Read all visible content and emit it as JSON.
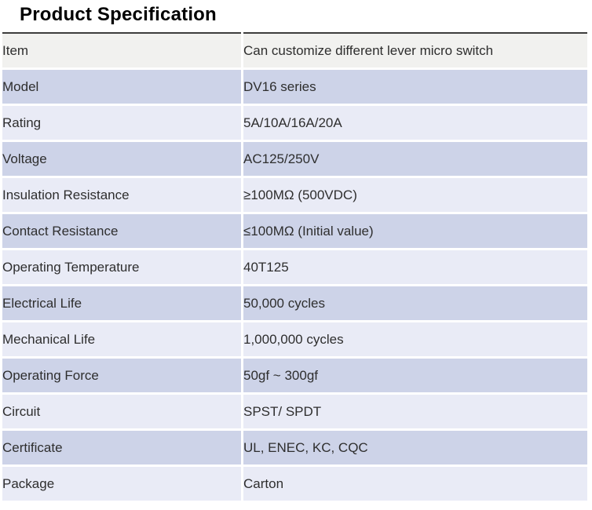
{
  "page": {
    "title": "Product Specification"
  },
  "table": {
    "rows": [
      {
        "label": "Item",
        "value": "Can customize different lever micro switch"
      },
      {
        "label": "Model",
        "value": "DV16 series"
      },
      {
        "label": "Rating",
        "value": "5A/10A/16A/20A"
      },
      {
        "label": "Voltage",
        "value": "AC125/250V"
      },
      {
        "label": "Insulation Resistance",
        "value": "≥100MΩ (500VDC)"
      },
      {
        "label": "Contact Resistance",
        "value": "≤100MΩ (Initial value)"
      },
      {
        "label": "Operating Temperature",
        "value": "40T125"
      },
      {
        "label": "Electrical Life",
        "value": "50,000 cycles"
      },
      {
        "label": "Mechanical Life",
        "value": "1,000,000 cycles"
      },
      {
        "label": "Operating Force",
        "value": "50gf ~  300gf"
      },
      {
        "label": "Circuit",
        "value": "SPST/ SPDT"
      },
      {
        "label": "Certificate",
        "value": "UL, ENEC, KC, CQC"
      },
      {
        "label": "Package",
        "value": "Carton"
      }
    ]
  },
  "colors": {
    "title_text": "#000000",
    "text": "#2e2e2e",
    "top_border": "#3d3d3d",
    "header_row_bg": "#f1f1ef",
    "row_dark_bg": "#cdd3e8",
    "row_light_bg": "#e9ebf6"
  }
}
